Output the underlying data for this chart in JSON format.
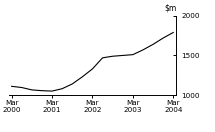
{
  "title": "",
  "ylim": [
    1000,
    2000
  ],
  "yticks": [
    1000,
    1500,
    2000
  ],
  "ytick_labels": [
    "1000",
    "1500",
    "2000"
  ],
  "x_tick_positions": [
    0,
    4,
    8,
    12,
    16
  ],
  "x_tick_labels_line1": [
    "Mar",
    "Mar",
    "Mar",
    "Mar",
    "Mar"
  ],
  "x_tick_labels_line2": [
    "2000",
    "2001",
    "2002",
    "2003",
    "2004"
  ],
  "line_color": "#000000",
  "line_width": 0.8,
  "background_color": "#ffffff",
  "data_x": [
    0,
    1,
    2,
    3,
    4,
    5,
    6,
    7,
    8,
    9,
    10,
    11,
    12,
    13,
    14,
    15,
    16
  ],
  "data_y": [
    1110,
    1095,
    1065,
    1055,
    1050,
    1080,
    1140,
    1230,
    1330,
    1470,
    1490,
    1500,
    1510,
    1570,
    1640,
    1720,
    1790
  ]
}
